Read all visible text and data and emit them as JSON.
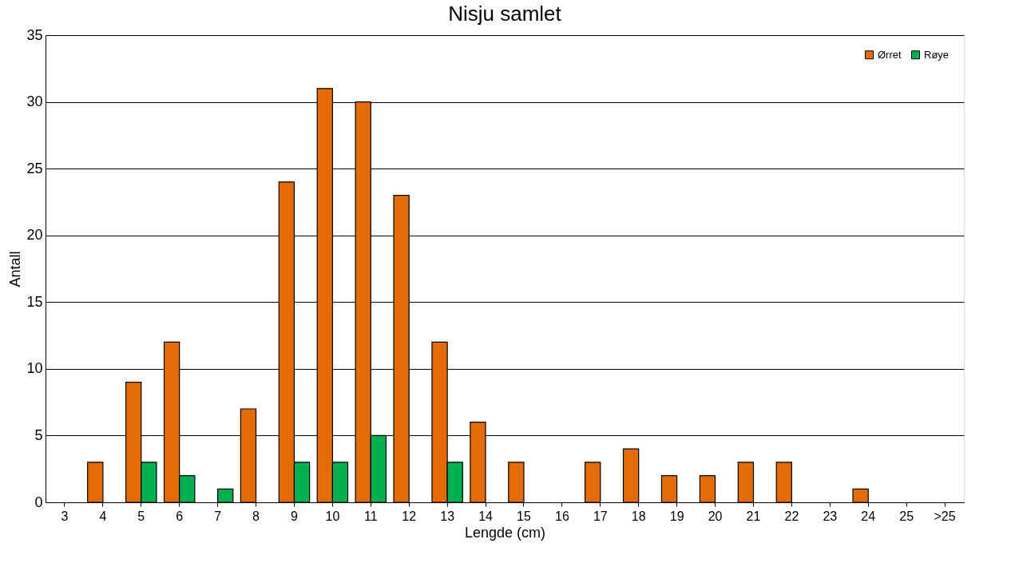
{
  "chart_data": {
    "type": "bar",
    "title": "Nisju samlet",
    "xlabel": "Lengde (cm)",
    "ylabel": "Antall",
    "categories": [
      "3",
      "4",
      "5",
      "6",
      "7",
      "8",
      "9",
      "10",
      "11",
      "12",
      "13",
      "14",
      "15",
      "16",
      "17",
      "18",
      "19",
      "20",
      "21",
      "22",
      "23",
      "24",
      "25",
      ">25"
    ],
    "series": [
      {
        "name": "Ørret",
        "color": "#e36c09",
        "values": [
          0,
          3,
          9,
          12,
          0,
          7,
          24,
          31,
          30,
          23,
          12,
          6,
          3,
          0,
          3,
          4,
          2,
          2,
          3,
          3,
          0,
          1,
          0,
          0
        ]
      },
      {
        "name": "Røye",
        "color": "#00b050",
        "values": [
          0,
          0,
          3,
          2,
          1,
          0,
          3,
          3,
          5,
          0,
          3,
          0,
          0,
          0,
          0,
          0,
          0,
          0,
          0,
          0,
          0,
          0,
          0,
          0
        ]
      }
    ],
    "ylim": [
      0,
      35
    ],
    "yticks": [
      0,
      5,
      10,
      15,
      20,
      25,
      30,
      35
    ],
    "grid": "y",
    "legend": "top right"
  }
}
